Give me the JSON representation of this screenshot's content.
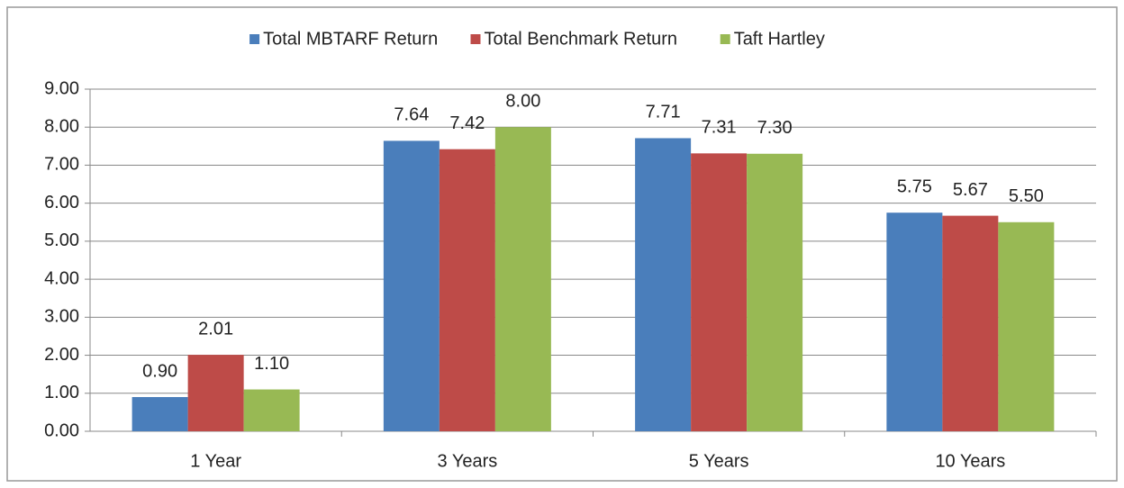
{
  "chart_data": {
    "type": "bar",
    "categories": [
      "1 Year",
      "3 Years",
      "5 Years",
      "10 Years"
    ],
    "series": [
      {
        "name": "Total MBTARF Return",
        "color": "#4a7ebb",
        "values": [
          0.9,
          7.64,
          7.71,
          5.75
        ],
        "value_labels": [
          "0.90",
          "7.64",
          "7.71",
          "5.75"
        ]
      },
      {
        "name": "Total Benchmark Return",
        "color": "#be4b48",
        "values": [
          2.01,
          7.42,
          7.31,
          5.67
        ],
        "value_labels": [
          "2.01",
          "7.42",
          "7.31",
          "5.67"
        ]
      },
      {
        "name": "Taft Hartley",
        "color": "#98b954",
        "values": [
          1.1,
          8.0,
          7.3,
          5.5
        ],
        "value_labels": [
          "1.10",
          "8.00",
          "7.30",
          "5.50"
        ]
      }
    ],
    "ylim": [
      0,
      9
    ],
    "yticks": [
      {
        "value": 0,
        "label": "0.00"
      },
      {
        "value": 1,
        "label": "1.00"
      },
      {
        "value": 2,
        "label": "2.00"
      },
      {
        "value": 3,
        "label": "3.00"
      },
      {
        "value": 4,
        "label": "4.00"
      },
      {
        "value": 5,
        "label": "5.00"
      },
      {
        "value": 6,
        "label": "6.00"
      },
      {
        "value": 7,
        "label": "7.00"
      },
      {
        "value": 8,
        "label": "8.00"
      },
      {
        "value": 9,
        "label": "9.00"
      }
    ],
    "grid": true,
    "legend": "top"
  }
}
